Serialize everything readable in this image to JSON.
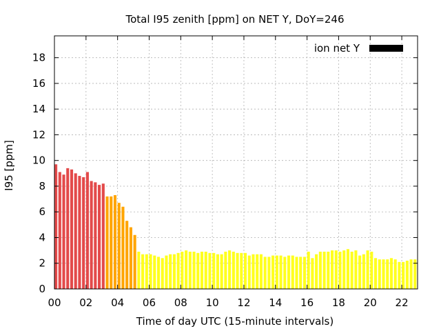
{
  "chart_data": {
    "type": "bar",
    "title": "Total I95 zenith [ppm] on NET Y, DoY=246",
    "xlabel": "Time of day UTC (15-minute intervals)",
    "ylabel": "I95 [ppm]",
    "xlim": [
      0,
      22.75
    ],
    "ylim": [
      0,
      19.7
    ],
    "xticks": [
      "00",
      "02",
      "04",
      "06",
      "08",
      "10",
      "12",
      "14",
      "16",
      "18",
      "20",
      "22"
    ],
    "yticks": [
      "0",
      "2",
      "4",
      "6",
      "8",
      "10",
      "12",
      "14",
      "16",
      "18"
    ],
    "grid": true,
    "legend": {
      "position": "top-right",
      "label": "ion net Y",
      "color": "#000000"
    },
    "colors": {
      "high": "#e34a4a",
      "medium": "#ffa500",
      "low": "#ffff1e"
    },
    "series": [
      {
        "x": [
          0,
          0.25,
          0.5,
          0.75,
          1,
          1.25,
          1.5,
          1.75,
          2,
          2.25,
          2.5,
          2.75,
          3,
          3.25,
          3.5,
          3.75,
          4,
          4.25,
          4.5,
          4.75,
          5,
          5.25,
          5.5,
          5.75,
          6,
          6.25,
          6.5,
          6.75,
          7,
          7.25,
          7.5,
          7.75,
          8,
          8.25,
          8.5,
          8.75,
          9,
          9.25,
          9.5,
          9.75,
          10,
          10.25,
          10.5,
          10.75,
          11,
          11.25,
          11.5,
          11.75,
          12,
          12.25,
          12.5,
          12.75,
          13,
          13.25,
          13.5,
          13.75,
          14,
          14.25,
          14.5,
          14.75,
          15,
          15.25,
          15.5,
          15.75,
          16,
          16.25,
          16.5,
          16.75,
          17,
          17.25,
          17.5,
          17.75,
          18,
          18.25,
          18.5,
          18.75,
          19,
          19.25,
          19.5,
          19.75,
          20,
          20.25,
          20.5,
          20.75,
          21,
          21.25,
          21.5,
          21.75,
          22,
          22.25,
          22.5,
          22.75
        ],
        "values": [
          9.7,
          9.1,
          8.9,
          9.4,
          9.3,
          9.0,
          8.8,
          8.7,
          9.1,
          8.4,
          8.3,
          8.1,
          8.2,
          7.2,
          7.2,
          7.3,
          6.7,
          6.4,
          5.3,
          4.8,
          4.2,
          2.9,
          2.7,
          2.7,
          2.7,
          2.6,
          2.5,
          2.4,
          2.6,
          2.7,
          2.7,
          2.8,
          2.9,
          3.0,
          2.9,
          2.9,
          2.8,
          2.9,
          2.9,
          2.8,
          2.8,
          2.7,
          2.7,
          2.9,
          3.0,
          2.9,
          2.8,
          2.8,
          2.8,
          2.6,
          2.7,
          2.7,
          2.7,
          2.5,
          2.5,
          2.6,
          2.6,
          2.6,
          2.5,
          2.6,
          2.6,
          2.5,
          2.5,
          2.5,
          2.9,
          2.4,
          2.7,
          2.9,
          2.9,
          2.9,
          3.0,
          3.0,
          2.9,
          3.0,
          3.1,
          2.9,
          3.0,
          2.6,
          2.7,
          3.0,
          2.9,
          2.4,
          2.3,
          2.3,
          2.3,
          2.4,
          2.3,
          2.1,
          2.1,
          2.2,
          2.3,
          2.3
        ]
      }
    ]
  }
}
